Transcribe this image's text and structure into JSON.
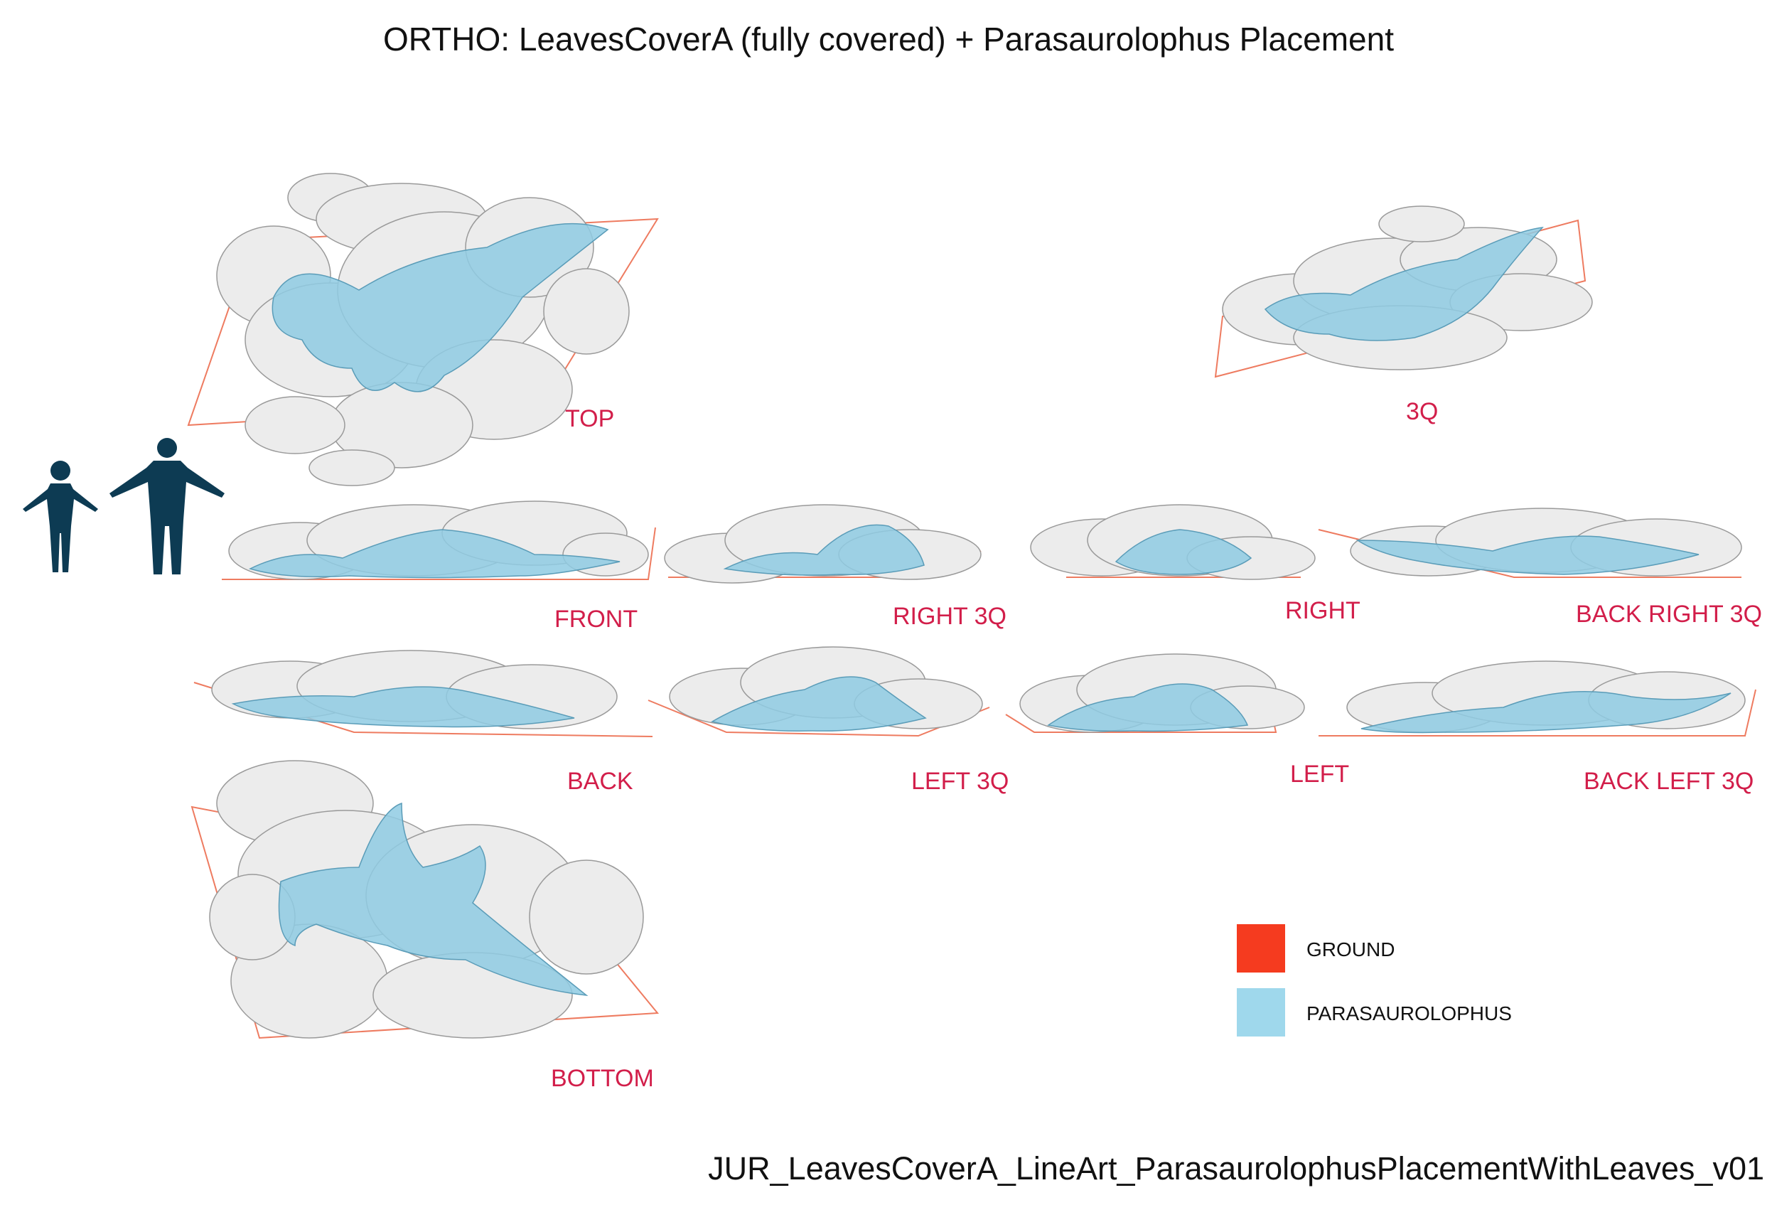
{
  "title": "ORTHO: LeavesCoverA (fully covered) + Parasaurolophus Placement",
  "footer": "JUR_LeavesCoverA_LineArt_ParasaurolophusPlacementWithLeaves_v01",
  "views": {
    "top": "TOP",
    "three_q": "3Q",
    "front": "FRONT",
    "right_3q": "RIGHT 3Q",
    "right": "RIGHT",
    "back_right_3q": "BACK RIGHT 3Q",
    "back": "BACK",
    "left_3q": "LEFT 3Q",
    "left": "LEFT",
    "back_left_3q": "BACK LEFT 3Q",
    "bottom": "BOTTOM"
  },
  "legend": {
    "items": [
      {
        "label": "GROUND",
        "color": "#f53b1f"
      },
      {
        "label": "PARASAUROLOPHUS",
        "color": "#9fd8ec"
      }
    ]
  },
  "colors": {
    "label": "#d21e4a",
    "ground_outline": "#ee7b60",
    "creature_fill": "#8fcbe3",
    "leaf_fill": "#ececec",
    "scale_figures": "#0d3b53"
  },
  "scale_figures": [
    "child-silhouette-icon",
    "adult-silhouette-icon"
  ]
}
